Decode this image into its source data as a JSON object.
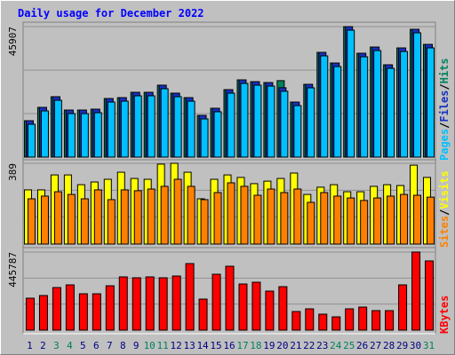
{
  "legend_separator": "/",
  "chart_data": [
    {
      "type": "bar",
      "title": "Daily usage for December 2022",
      "ylim": [
        0,
        45907
      ],
      "yticks": [
        45907
      ],
      "series": [
        {
          "name": "Hits",
          "color": "#00805c",
          "values": [
            12800,
            17490,
            21240,
            16550,
            16550,
            16860,
            20610,
            20920,
            22800,
            22800,
            25300,
            22490,
            20920,
            14680,
            17180,
            23730,
            27170,
            26540,
            26230,
            26900,
            19360,
            25610,
            36850,
            33100,
            45907,
            36540,
            38720,
            32480,
            38410,
            44970,
            39660
          ]
        },
        {
          "name": "Files",
          "color": "#1830c0",
          "values": [
            12800,
            17490,
            21240,
            16550,
            16550,
            16860,
            20610,
            20920,
            22800,
            22800,
            25300,
            22490,
            20920,
            14680,
            17180,
            23730,
            27170,
            26540,
            26230,
            24400,
            19360,
            25610,
            36850,
            33100,
            45907,
            36540,
            38720,
            32480,
            38410,
            44970,
            39660
          ]
        },
        {
          "name": "Pages",
          "color": "#00c0ff",
          "values": [
            11550,
            16240,
            19990,
            15300,
            15300,
            15610,
            19360,
            19670,
            21550,
            21550,
            24050,
            21240,
            19670,
            13430,
            15930,
            22480,
            25920,
            25290,
            24980,
            23150,
            18110,
            24360,
            35600,
            31850,
            44660,
            35290,
            37470,
            31230,
            37160,
            43720,
            38410
          ]
        }
      ]
    },
    {
      "type": "bar",
      "ylim": [
        0,
        389
      ],
      "yticks": [
        389
      ],
      "series": [
        {
          "name": "Visits",
          "color": "#ffff00",
          "values": [
            261,
            261,
            333,
            333,
            286,
            299,
            312,
            346,
            316,
            312,
            385,
            389,
            346,
            218,
            312,
            333,
            321,
            291,
            303,
            316,
            342,
            239,
            274,
            286,
            252,
            252,
            278,
            286,
            282,
            380,
            321
          ]
        },
        {
          "name": "Sites",
          "color": "#ff8000",
          "values": [
            218,
            231,
            252,
            239,
            218,
            261,
            214,
            261,
            257,
            265,
            278,
            312,
            278,
            214,
            248,
            295,
            278,
            235,
            265,
            248,
            265,
            201,
            248,
            231,
            222,
            210,
            222,
            231,
            239,
            235,
            226
          ]
        }
      ]
    },
    {
      "type": "bar",
      "ylim": [
        0,
        445787
      ],
      "yticks": [
        445787
      ],
      "categories": [
        "1",
        "2",
        "3",
        "4",
        "5",
        "6",
        "7",
        "8",
        "9",
        "10",
        "11",
        "12",
        "13",
        "14",
        "15",
        "16",
        "17",
        "18",
        "19",
        "20",
        "21",
        "22",
        "23",
        "24",
        "25",
        "26",
        "27",
        "28",
        "29",
        "30",
        "31"
      ],
      "category_colors": [
        "#000080",
        "#000080",
        "#00805c",
        "#00805c",
        "#000080",
        "#000080",
        "#000080",
        "#000080",
        "#000080",
        "#00805c",
        "#00805c",
        "#000080",
        "#000080",
        "#000080",
        "#000080",
        "#000080",
        "#00805c",
        "#00805c",
        "#000080",
        "#000080",
        "#000080",
        "#000080",
        "#000080",
        "#00805c",
        "#00805c",
        "#000080",
        "#000080",
        "#000080",
        "#000080",
        "#000080",
        "#00805c"
      ],
      "series": [
        {
          "name": "KBytes",
          "color": "#ff0000",
          "values": [
            182400,
            197600,
            243200,
            258400,
            207700,
            207700,
            253300,
            304000,
            298900,
            304000,
            298900,
            309000,
            380000,
            177300,
            319200,
            364800,
            263400,
            273600,
            222900,
            248200,
            106400,
            121600,
            91200,
            76000,
            121600,
            131700,
            111500,
            111500,
            258400,
            445787,
            395100
          ]
        }
      ]
    }
  ]
}
